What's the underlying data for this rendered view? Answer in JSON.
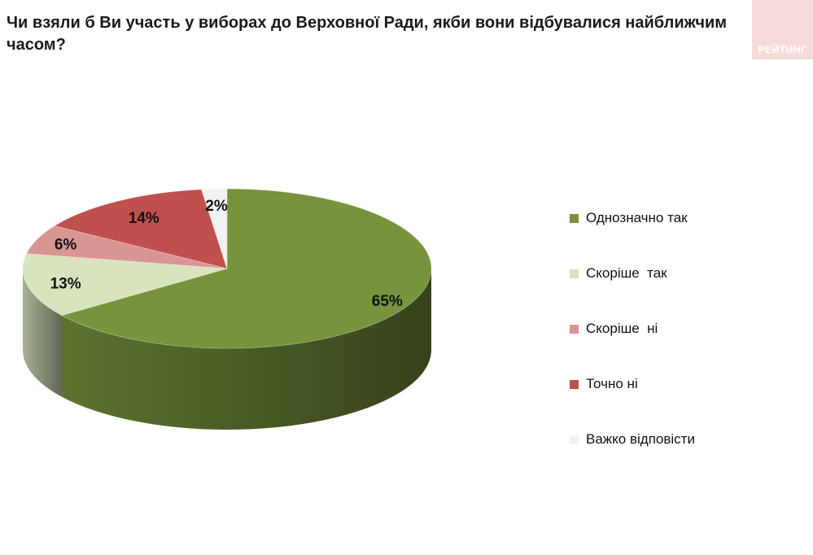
{
  "header": {
    "title": "Чи взяли б Ви участь у виборах до Верховної Ради, якби вони відбувалися найближчим часом?",
    "brand_text": "РЕЙТИНГ",
    "brand_color": "#f6dada"
  },
  "chart_data": {
    "type": "pie",
    "title": "Чи взяли б Ви участь у виборах до Верховної Ради, якби вони відбувалися найближчим часом?",
    "style": "3d",
    "legend_position": "right",
    "categories": [
      "Однозначно так",
      "Скоріше  так",
      "Скоріше  ні",
      "Точно ні",
      "Важко відповісти"
    ],
    "values": [
      65,
      13,
      6,
      14,
      2
    ],
    "labels": [
      "65%",
      "13%",
      "6%",
      "14%",
      "2%"
    ],
    "colors": [
      "#77933c",
      "#d7e4bd",
      "#d99594",
      "#c0504d",
      "#f2f2f2"
    ]
  }
}
